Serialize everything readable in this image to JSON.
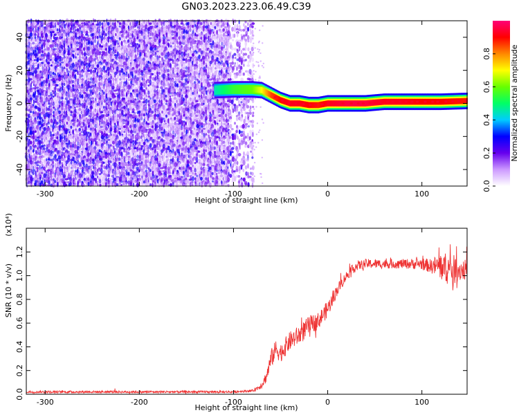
{
  "title": "GN03.2023.223.06.49.C39",
  "chart_data": [
    {
      "type": "heatmap",
      "name": "spectrogram",
      "xlabel": "Height of straight line (km)",
      "ylabel": "Frequency (Hz)",
      "xlim": [
        -320,
        148
      ],
      "ylim": [
        -50,
        50
      ],
      "x_ticks": [
        "-300",
        "-200",
        "-100",
        "0",
        "100"
      ],
      "x_tick_values": [
        -300,
        -200,
        -100,
        0,
        100
      ],
      "y_ticks": [
        "-40",
        "-20",
        "0",
        "20",
        "40"
      ],
      "y_tick_values": [
        -40,
        -20,
        0,
        20,
        40
      ],
      "noise_region": {
        "x_start": -320,
        "x_end": -80,
        "y_range": [
          -50,
          50
        ],
        "typical_amplitude": 0.15
      },
      "ridge": {
        "x": [
          -120,
          -100,
          -80,
          -70,
          -60,
          -50,
          -40,
          -30,
          -20,
          -10,
          0,
          20,
          40,
          60,
          80,
          100,
          120,
          148
        ],
        "frequency": [
          8,
          8.5,
          8.5,
          8,
          5,
          2,
          0,
          0,
          -1,
          -1,
          0,
          0,
          0,
          1,
          1,
          1,
          1,
          1.5
        ],
        "amplitude": [
          0.45,
          0.55,
          0.6,
          0.7,
          0.85,
          0.9,
          0.92,
          0.92,
          0.9,
          0.88,
          0.92,
          0.95,
          0.95,
          0.92,
          0.92,
          0.9,
          0.9,
          0.88
        ]
      }
    },
    {
      "type": "line",
      "name": "snr",
      "xlabel": "Height of straight line (km)",
      "ylabel": "SNR (10 * v/v)",
      "y_multiplier": "(x10⁴)",
      "xlim": [
        -320,
        148
      ],
      "ylim": [
        0,
        1.4
      ],
      "x_ticks": [
        "-300",
        "-200",
        "-100",
        "0",
        "100"
      ],
      "x_tick_values": [
        -300,
        -200,
        -100,
        0,
        100
      ],
      "y_ticks": [
        "0.0",
        "0.2",
        "0.4",
        "0.6",
        "0.8",
        "1.0",
        "1.2"
      ],
      "y_tick_values": [
        0,
        0.2,
        0.4,
        0.6,
        0.8,
        1.0,
        1.2
      ],
      "color": "#ee3333",
      "series": [
        {
          "x": [
            -320,
            -300,
            -250,
            -200,
            -150,
            -100,
            -80,
            -75,
            -70,
            -65,
            -60,
            -55,
            -50,
            -45,
            -40,
            -30,
            -20,
            -10,
            0,
            10,
            20,
            30,
            40,
            60,
            80,
            100,
            110,
            120,
            130,
            140,
            148
          ],
          "y": [
            0.02,
            0.02,
            0.02,
            0.02,
            0.02,
            0.02,
            0.03,
            0.05,
            0.08,
            0.15,
            0.3,
            0.38,
            0.35,
            0.4,
            0.45,
            0.5,
            0.58,
            0.62,
            0.72,
            0.88,
            1.0,
            1.08,
            1.1,
            1.1,
            1.1,
            1.1,
            1.08,
            1.08,
            1.05,
            1.05,
            1.05
          ],
          "noise": [
            0.01,
            0.01,
            0.01,
            0.01,
            0.01,
            0.01,
            0.01,
            0.02,
            0.03,
            0.05,
            0.08,
            0.08,
            0.08,
            0.08,
            0.08,
            0.08,
            0.08,
            0.07,
            0.07,
            0.05,
            0.04,
            0.04,
            0.04,
            0.04,
            0.04,
            0.05,
            0.06,
            0.12,
            0.14,
            0.1,
            0.08
          ]
        }
      ]
    }
  ],
  "colorbar": {
    "label": "Normalized spectral amplitude",
    "ticks": [
      "0.0",
      "0.2",
      "0.4",
      "0.6",
      "0.8"
    ],
    "tick_values": [
      0,
      0.2,
      0.4,
      0.6,
      0.8
    ],
    "range": [
      0,
      1
    ],
    "colormap": [
      "#ffffff",
      "#cc99ff",
      "#6600ee",
      "#0000ff",
      "#00ccff",
      "#00ff66",
      "#66ff00",
      "#ffff00",
      "#ff8800",
      "#ff0000",
      "#ff0077"
    ]
  }
}
